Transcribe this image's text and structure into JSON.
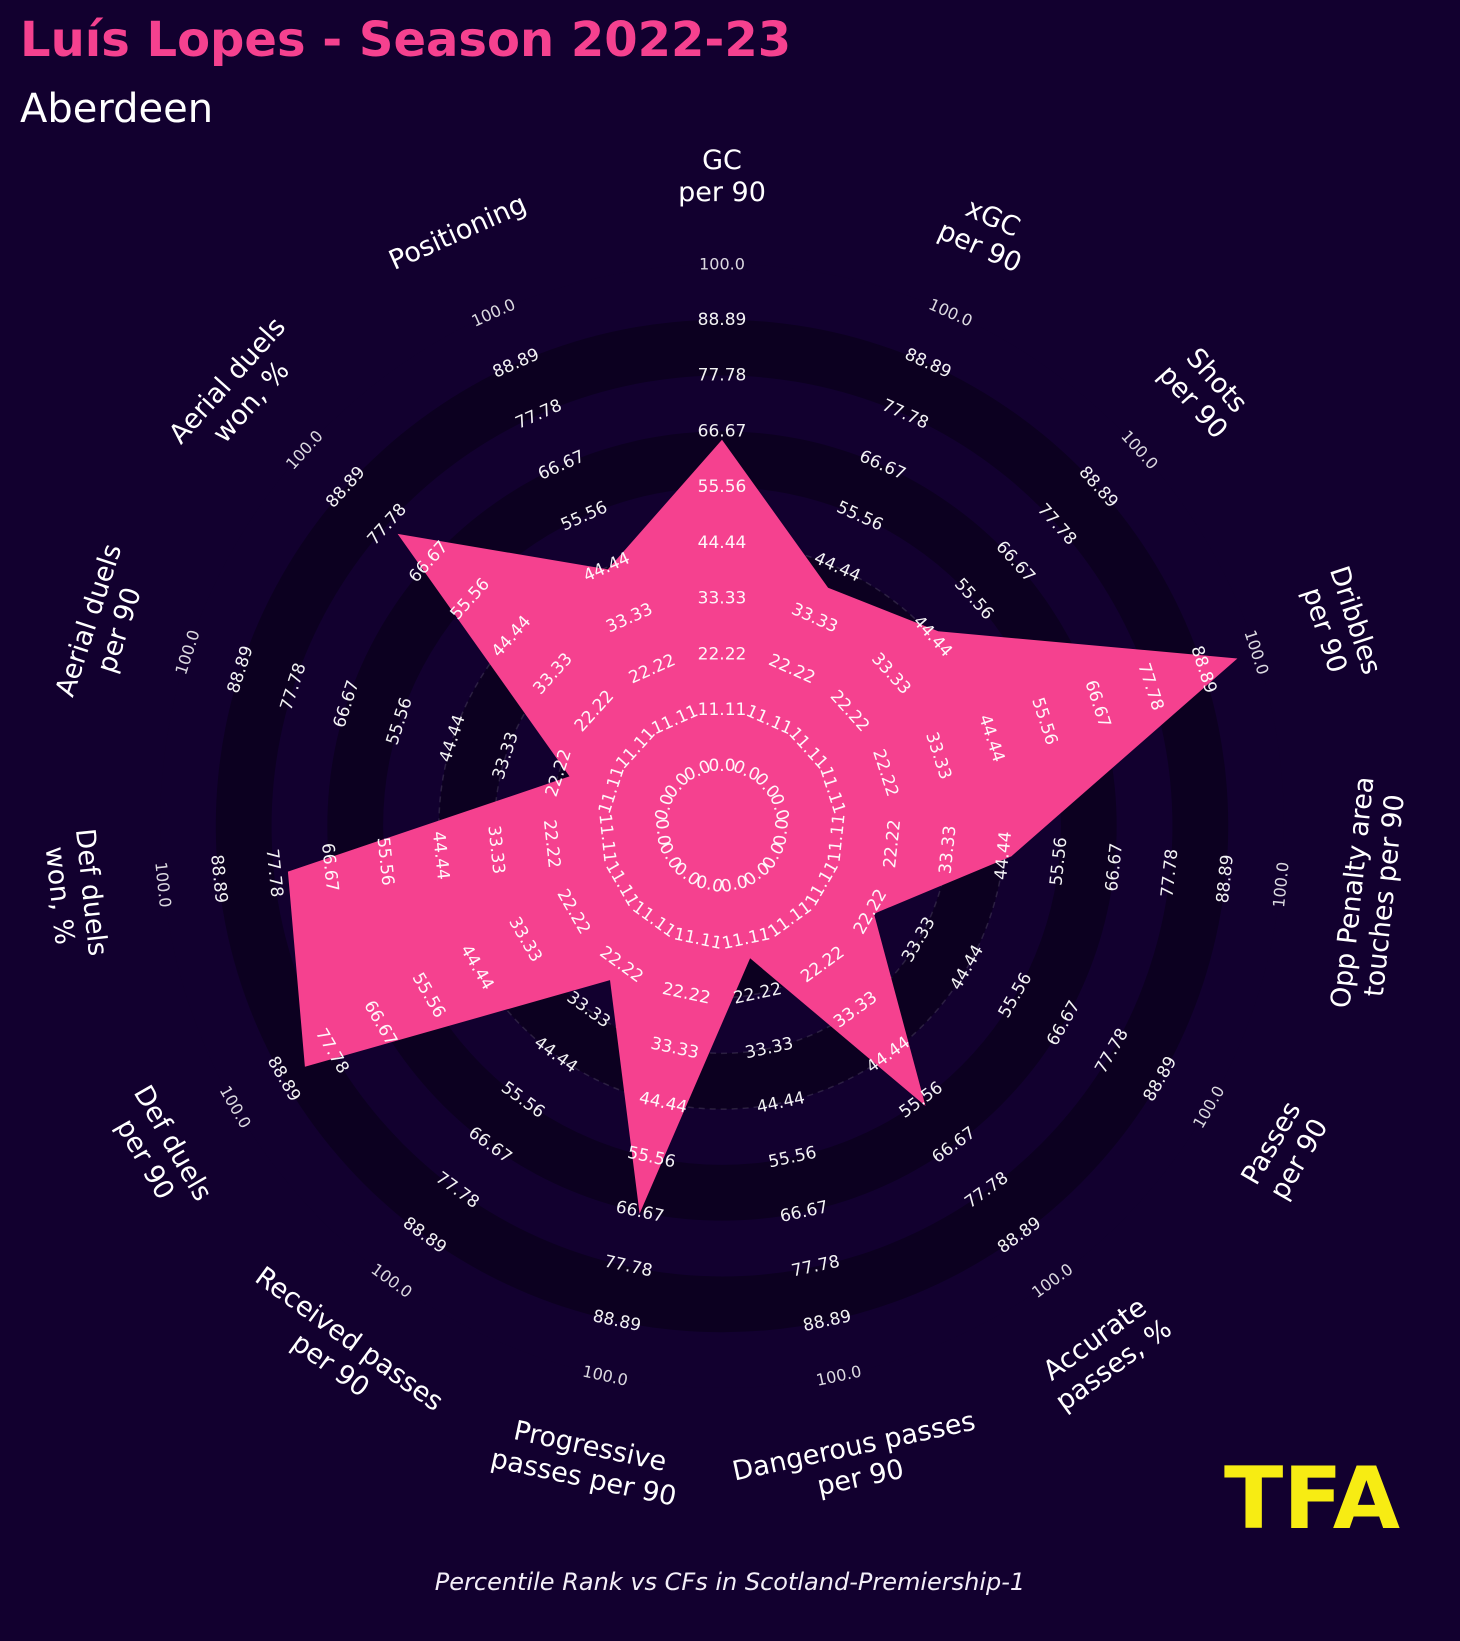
{
  "header": {
    "title": "Luís Lopes - Season 2022-23",
    "subtitle": "Aberdeen"
  },
  "footer": {
    "text": "Percentile Rank vs CFs in Scotland-Premiership-1"
  },
  "logo": {
    "text": "TFA",
    "color": "#f7ec13"
  },
  "colors": {
    "background": "#12002f",
    "ring_dark": "#0c0020",
    "ring_light": "#12002f",
    "fill": "#f5418f",
    "title": "#f5418f",
    "label": "#ffffff",
    "tick": "#ffffff"
  },
  "chart_data": {
    "type": "radar",
    "scale": "percentile",
    "range": [
      0,
      100
    ],
    "ticks": [
      "0.0",
      "11.11",
      "22.22",
      "33.33",
      "44.44",
      "55.56",
      "66.67",
      "77.78",
      "88.89",
      "100.0"
    ],
    "categories": [
      [
        "GC",
        "per 90"
      ],
      [
        "xGC",
        "per 90"
      ],
      [
        "Shots",
        "per 90"
      ],
      [
        "Dribbles",
        "per 90"
      ],
      [
        "Opp Penalty area",
        "touches per 90"
      ],
      [
        "Passes",
        "per 90"
      ],
      [
        "Accurate",
        "passes, %"
      ],
      [
        "Dangerous passes",
        "per 90"
      ],
      [
        "Progressive",
        "passes per 90"
      ],
      [
        "Received passes",
        "per 90"
      ],
      [
        "Def duels",
        "per 90"
      ],
      [
        "Def duels",
        "won, %"
      ],
      [
        "Aerial duels",
        "per 90"
      ],
      [
        "Aerial duels",
        "won, %"
      ],
      [
        "Positioning"
      ]
    ],
    "values": [
      65,
      40,
      46,
      96,
      46,
      23,
      57,
      15,
      67,
      26,
      84,
      75,
      20,
      75,
      44
    ]
  }
}
